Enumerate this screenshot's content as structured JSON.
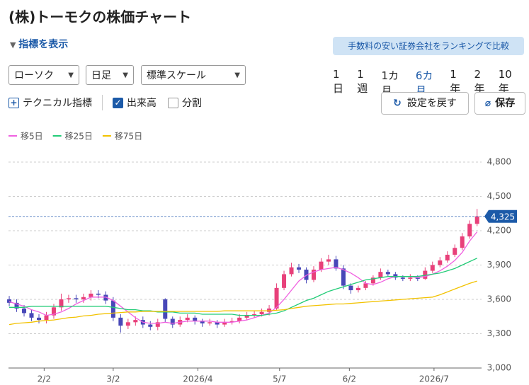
{
  "header": {
    "title": "(株)トーモクの株価チャート",
    "indicator_toggle": "指標を表示",
    "promo": "手数料の安い証券会社をランキングで比較"
  },
  "controls": {
    "selects": [
      "ローソク",
      "日足",
      "標準スケール"
    ],
    "periods": [
      "1日",
      "1週",
      "1カ月",
      "6カ月",
      "1年",
      "2年",
      "10年"
    ],
    "active_period": 3,
    "options": [
      {
        "label": "テクニカル指標",
        "kind": "plus"
      },
      {
        "label": "出来高",
        "checked": true
      },
      {
        "label": "分割",
        "checked": false
      }
    ],
    "buttons": [
      "設定を戻す",
      "保存"
    ]
  },
  "chart_data": {
    "type": "candlestick",
    "up_color": "#e8407a",
    "down_color": "#4848b8",
    "candles": [
      [
        3600,
        3630,
        3540,
        3570
      ],
      [
        3570,
        3600,
        3490,
        3520
      ],
      [
        3520,
        3550,
        3450,
        3480
      ],
      [
        3480,
        3510,
        3410,
        3440
      ],
      [
        3440,
        3470,
        3390,
        3420
      ],
      [
        3420,
        3490,
        3390,
        3460
      ],
      [
        3460,
        3560,
        3430,
        3530
      ],
      [
        3530,
        3650,
        3500,
        3600
      ],
      [
        3600,
        3640,
        3570,
        3610
      ],
      [
        3610,
        3640,
        3570,
        3600
      ],
      [
        3600,
        3650,
        3570,
        3620
      ],
      [
        3620,
        3680,
        3590,
        3650
      ],
      [
        3650,
        3680,
        3610,
        3640
      ],
      [
        3640,
        3670,
        3560,
        3590
      ],
      [
        3590,
        3620,
        3410,
        3440
      ],
      [
        3440,
        3470,
        3310,
        3370
      ],
      [
        3370,
        3430,
        3340,
        3400
      ],
      [
        3400,
        3450,
        3370,
        3420
      ],
      [
        3420,
        3450,
        3350,
        3380
      ],
      [
        3380,
        3410,
        3330,
        3360
      ],
      [
        3360,
        3430,
        3330,
        3400
      ],
      [
        3600,
        3610,
        3400,
        3430
      ],
      [
        3430,
        3450,
        3350,
        3380
      ],
      [
        3380,
        3450,
        3360,
        3420
      ],
      [
        3420,
        3470,
        3400,
        3440
      ],
      [
        3440,
        3460,
        3380,
        3410
      ],
      [
        3410,
        3430,
        3360,
        3390
      ],
      [
        3390,
        3430,
        3370,
        3400
      ],
      [
        3400,
        3420,
        3350,
        3380
      ],
      [
        3380,
        3430,
        3360,
        3400
      ],
      [
        3400,
        3440,
        3380,
        3410
      ],
      [
        3410,
        3470,
        3390,
        3440
      ],
      [
        3440,
        3490,
        3420,
        3460
      ],
      [
        3460,
        3500,
        3440,
        3470
      ],
      [
        3470,
        3520,
        3450,
        3490
      ],
      [
        3490,
        3550,
        3460,
        3520
      ],
      [
        3520,
        3740,
        3500,
        3700
      ],
      [
        3700,
        3850,
        3680,
        3820
      ],
      [
        3820,
        3920,
        3800,
        3880
      ],
      [
        3880,
        3910,
        3830,
        3860
      ],
      [
        3860,
        3880,
        3740,
        3770
      ],
      [
        3770,
        3890,
        3750,
        3860
      ],
      [
        3860,
        3960,
        3840,
        3930
      ],
      [
        3930,
        3990,
        3900,
        3950
      ],
      [
        3950,
        3980,
        3850,
        3870
      ],
      [
        3870,
        3900,
        3690,
        3720
      ],
      [
        3720,
        3740,
        3650,
        3680
      ],
      [
        3680,
        3720,
        3660,
        3700
      ],
      [
        3700,
        3760,
        3680,
        3740
      ],
      [
        3740,
        3810,
        3720,
        3790
      ],
      [
        3790,
        3870,
        3770,
        3840
      ],
      [
        3840,
        3860,
        3800,
        3820
      ],
      [
        3820,
        3840,
        3770,
        3790
      ],
      [
        3790,
        3810,
        3760,
        3780
      ],
      [
        3780,
        3820,
        3760,
        3790
      ],
      [
        3790,
        3810,
        3760,
        3780
      ],
      [
        3780,
        3880,
        3770,
        3850
      ],
      [
        3850,
        3930,
        3830,
        3900
      ],
      [
        3900,
        3970,
        3880,
        3940
      ],
      [
        3940,
        4020,
        3920,
        3990
      ],
      [
        3990,
        4080,
        3970,
        4050
      ],
      [
        4050,
        4180,
        4030,
        4150
      ],
      [
        4150,
        4290,
        4130,
        4260
      ],
      [
        4260,
        4390,
        4240,
        4325
      ]
    ],
    "series": [
      {
        "name": "移5日",
        "color": "#f060e0",
        "values": [
          3580,
          3560,
          3540,
          3510,
          3490,
          3460,
          3470,
          3490,
          3520,
          3560,
          3590,
          3620,
          3620,
          3620,
          3590,
          3540,
          3490,
          3440,
          3400,
          3390,
          3390,
          3400,
          3390,
          3400,
          3410,
          3410,
          3410,
          3410,
          3400,
          3400,
          3400,
          3410,
          3420,
          3440,
          3460,
          3480,
          3530,
          3600,
          3680,
          3760,
          3810,
          3840,
          3860,
          3870,
          3880,
          3860,
          3830,
          3790,
          3740,
          3730,
          3750,
          3780,
          3800,
          3800,
          3800,
          3790,
          3800,
          3820,
          3850,
          3890,
          3940,
          4010,
          4110,
          4190
        ]
      },
      {
        "name": "移25日",
        "color": "#22cc77",
        "values": [
          3530,
          3530,
          3530,
          3540,
          3540,
          3540,
          3540,
          3540,
          3540,
          3540,
          3540,
          3540,
          3540,
          3540,
          3530,
          3520,
          3510,
          3510,
          3500,
          3500,
          3490,
          3490,
          3490,
          3480,
          3480,
          3480,
          3470,
          3470,
          3470,
          3470,
          3470,
          3460,
          3460,
          3460,
          3460,
          3470,
          3480,
          3500,
          3530,
          3560,
          3590,
          3610,
          3640,
          3670,
          3690,
          3710,
          3730,
          3750,
          3770,
          3780,
          3790,
          3800,
          3800,
          3800,
          3800,
          3800,
          3810,
          3820,
          3830,
          3850,
          3870,
          3900,
          3930,
          3960
        ]
      },
      {
        "name": "移75日",
        "color": "#f2c200",
        "values": [
          3380,
          3390,
          3395,
          3400,
          3410,
          3415,
          3420,
          3430,
          3440,
          3445,
          3455,
          3460,
          3470,
          3475,
          3480,
          3485,
          3490,
          3490,
          3495,
          3495,
          3495,
          3495,
          3495,
          3495,
          3495,
          3495,
          3495,
          3495,
          3495,
          3500,
          3500,
          3500,
          3500,
          3500,
          3500,
          3500,
          3505,
          3510,
          3520,
          3530,
          3540,
          3545,
          3550,
          3555,
          3560,
          3560,
          3565,
          3570,
          3575,
          3580,
          3585,
          3590,
          3595,
          3600,
          3605,
          3610,
          3615,
          3620,
          3640,
          3665,
          3690,
          3715,
          3740,
          3760
        ]
      }
    ],
    "xlim": [
      -0.1,
      63.6
    ],
    "xticks": [
      {
        "value": 4.7,
        "label": "2/2"
      },
      {
        "value": 14,
        "label": "3/2"
      },
      {
        "value": 25.4,
        "label": "2026/4"
      },
      {
        "value": 36.4,
        "label": "5/7"
      },
      {
        "value": 45.8,
        "label": "6/2"
      },
      {
        "value": 57.2,
        "label": "2026/7"
      }
    ],
    "ylim": [
      3000,
      4800
    ],
    "yticks": [
      {
        "value": 3000,
        "label": "3,000"
      },
      {
        "value": 3300,
        "label": "3,300"
      },
      {
        "value": 3600,
        "label": "3,600"
      },
      {
        "value": 3900,
        "label": "3,900"
      },
      {
        "value": 4200,
        "label": "4,200"
      },
      {
        "value": 4500,
        "label": "4,500"
      },
      {
        "value": 4800,
        "label": "4,800"
      }
    ],
    "current_price": {
      "value": 4325,
      "label": "4,325"
    },
    "grid": true
  }
}
